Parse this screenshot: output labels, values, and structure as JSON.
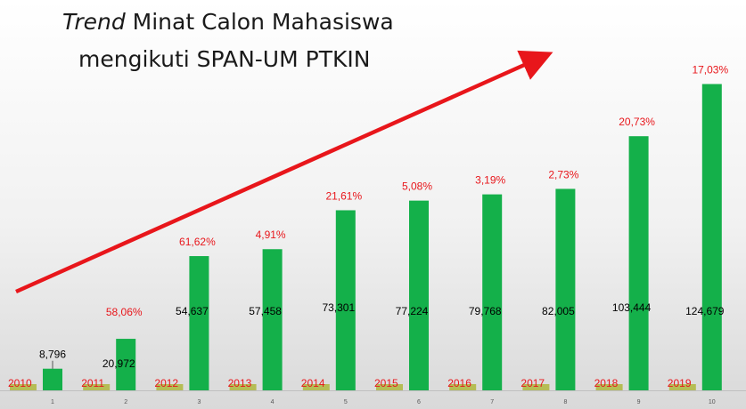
{
  "title": {
    "line1_em": "Trend",
    "line1_rest": " Minat Calon Mahasiswa",
    "line2": "mengikuti SPAN-UM PTKIN"
  },
  "colors": {
    "bar": "#14b04a",
    "small_bar": "#b5bd55",
    "arrow": "#e8161b",
    "label_red": "#e8161b",
    "background_top": "#ffffff",
    "background_bottom": "#dcdcdc"
  },
  "chart_data": {
    "type": "bar",
    "categories": [
      "1",
      "2",
      "3",
      "4",
      "5",
      "6",
      "7",
      "8",
      "9",
      "10"
    ],
    "series": [
      {
        "values": [
          8796,
          20972,
          54637,
          57458,
          73301,
          77224,
          79768,
          82005,
          103444,
          124679
        ],
        "labels": [
          "8,796",
          "20,972",
          "54,637",
          "57,458",
          "73,301",
          "77,224",
          "79,768",
          "82,005",
          "103,444",
          "124,679"
        ]
      }
    ],
    "years": [
      "2010",
      "2011",
      "2012",
      "2013",
      "2014",
      "2015",
      "2016",
      "2017",
      "2018",
      "2019"
    ],
    "growth_labels": [
      "",
      "58,06%",
      "61,62%",
      "4,91%",
      "21,61%",
      "5,08%",
      "3,19%",
      "2,73%",
      "20,73%",
      "17,03%"
    ],
    "ylim": [
      0,
      135000
    ],
    "annotations": [
      "upward trend arrow"
    ]
  }
}
